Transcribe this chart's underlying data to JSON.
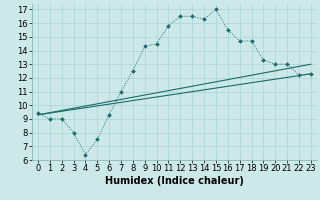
{
  "xlabel": "Humidex (Indice chaleur)",
  "bg_color": "#cce8e8",
  "line_color": "#1a6b6b",
  "xlim": [
    -0.5,
    23.5
  ],
  "ylim": [
    6,
    17.4
  ],
  "xticks": [
    0,
    1,
    2,
    3,
    4,
    5,
    6,
    7,
    8,
    9,
    10,
    11,
    12,
    13,
    14,
    15,
    16,
    17,
    18,
    19,
    20,
    21,
    22,
    23
  ],
  "yticks": [
    6,
    7,
    8,
    9,
    10,
    11,
    12,
    13,
    14,
    15,
    16,
    17
  ],
  "line1_x": [
    0,
    1,
    2,
    3,
    4,
    5,
    6,
    7,
    8,
    9,
    10,
    11,
    12,
    13,
    14,
    15,
    16,
    17,
    18,
    19,
    20,
    21,
    22,
    23
  ],
  "line1_y": [
    9.4,
    9.0,
    9.0,
    8.0,
    6.4,
    7.5,
    9.3,
    11.0,
    12.5,
    14.3,
    14.5,
    15.8,
    16.5,
    16.5,
    16.3,
    17.0,
    15.5,
    14.7,
    14.7,
    13.3,
    13.0,
    13.0,
    12.2,
    12.3
  ],
  "line2_x": [
    0,
    23
  ],
  "line2_y": [
    9.3,
    13.0
  ],
  "line3_x": [
    0,
    23
  ],
  "line3_y": [
    9.3,
    12.3
  ],
  "font_size_label": 7,
  "font_size_tick": 6
}
